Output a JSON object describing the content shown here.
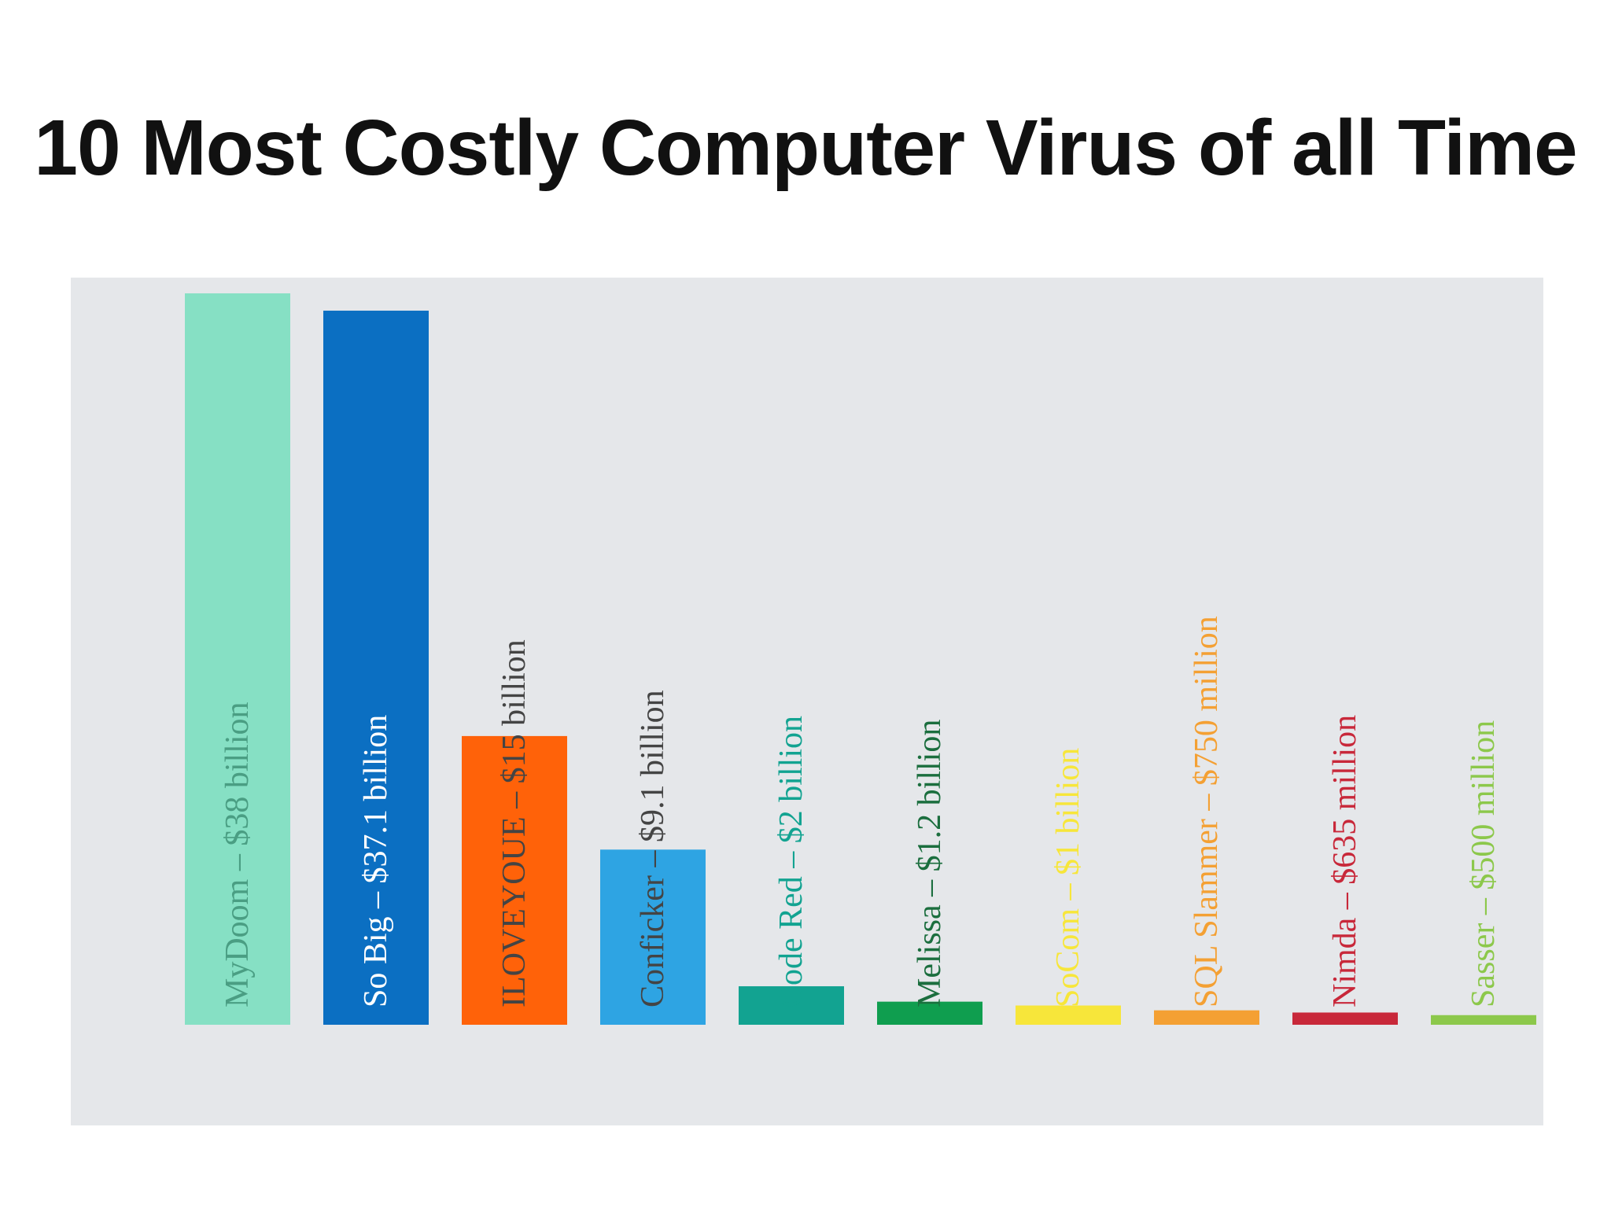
{
  "title": "10 Most Costly Computer Virus of all Time",
  "chart_data": {
    "type": "bar",
    "orientation": "vertical",
    "title": "",
    "xlabel": "",
    "ylabel": "",
    "grid": false,
    "legend": "none",
    "unit": "USD billion",
    "categories": [
      "MyDoom",
      "So Big",
      "ILOVEYOUE",
      "Conficker",
      "Code Red",
      "Melissa",
      "SoCom",
      "SQL Slammer",
      "Nimda",
      "Sasser"
    ],
    "values": [
      38,
      37.1,
      15,
      9.1,
      2,
      1.2,
      1,
      0.75,
      0.635,
      0.5
    ],
    "labels": [
      "MyDoom – $38 billion",
      "So Big – $37.1 billion",
      "ILOVEYOUE – $15 billion",
      "Conficker – $9.1 billion",
      "Code Red – $2 billion",
      "Melissa – $1.2 billion",
      "SoCom – $1 billion",
      "SQL Slammer – $750 million",
      "Nimda – $635 million",
      "Sasser – $500 million"
    ],
    "colors": [
      "#86e0c4",
      "#0b6fc2",
      "#ff6209",
      "#2ea4e3",
      "#12a391",
      "#0f9e4f",
      "#f7e63a",
      "#f4a033",
      "#c8283a",
      "#8cc84b"
    ],
    "label_colors": [
      "#4a9e83",
      "#ffffff",
      "#444444",
      "#444444",
      "#12a391",
      "#1b6e3e",
      "#f7e63a",
      "#f4a033",
      "#c8283a",
      "#8cc84b"
    ],
    "ylim": [
      0,
      38
    ]
  }
}
